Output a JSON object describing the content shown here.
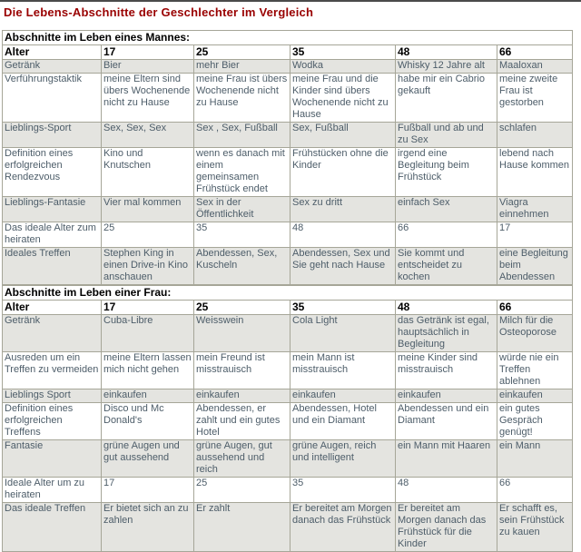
{
  "title": "Die Lebens-Abschnitte der Geschlechter im Vergleich",
  "colors": {
    "title_red": "#990000",
    "cell_text": "#4d5d69",
    "alt_row_bg": "#e4e4e0",
    "border": "#a6a698"
  },
  "sections": [
    {
      "section_title": "Abschnitte im Leben eines Mannes:",
      "age_label": "Alter",
      "ages": [
        "17",
        "25",
        "35",
        "48",
        "66"
      ],
      "rows": [
        {
          "label": "Getränk",
          "values": [
            "Bier",
            "mehr Bier",
            "Wodka",
            "Whisky 12 Jahre alt",
            "Maaloxan"
          ]
        },
        {
          "label": "Verführungstaktik",
          "values": [
            "meine Eltern sind übers Wochenende nicht zu Hause",
            "meine Frau ist übers Wochenende nicht zu Hause",
            "meine Frau und die Kinder sind übers Wochenende nicht zu Hause",
            "habe mir ein Cabrio gekauft",
            "meine zweite Frau ist gestorben"
          ]
        },
        {
          "label": "Lieblings-Sport",
          "values": [
            "Sex, Sex, Sex",
            "Sex , Sex, Fußball",
            "Sex, Fußball",
            "Fußball und ab und zu Sex",
            "schlafen"
          ]
        },
        {
          "label": "Definition eines erfolgreichen Rendezvous",
          "values": [
            "Kino und Knutschen",
            "wenn es danach mit einem gemeinsamen Frühstück endet",
            "Frühstücken ohne die Kinder",
            "irgend eine Begleitung beim Frühstück",
            "lebend nach Hause kommen"
          ]
        },
        {
          "label": "Lieblings-Fantasie",
          "values": [
            "Vier mal kommen",
            "Sex in der Öffentlichkeit",
            "Sex zu dritt",
            "einfach Sex",
            "Viagra einnehmen"
          ]
        },
        {
          "label": "Das ideale Alter zum heiraten",
          "values": [
            "25",
            "35",
            "48",
            "66",
            "17"
          ]
        },
        {
          "label": "Ideales Treffen",
          "values": [
            "Stephen King in einen Drive-in Kino anschauen",
            "Abendessen, Sex, Kuscheln",
            "Abendessen, Sex und Sie geht nach Hause",
            "Sie kommt und entscheidet zu kochen",
            "eine Begleitung beim Abendessen"
          ]
        }
      ]
    },
    {
      "section_title": "Abschnitte im Leben einer Frau:",
      "age_label": "Alter",
      "ages": [
        "17",
        "25",
        "35",
        "48",
        "66"
      ],
      "rows": [
        {
          "label": "Getränk",
          "values": [
            "Cuba-Libre",
            "Weisswein",
            "Cola Light",
            "das Getränk ist egal, hauptsächlich in Begleitung",
            "Milch für die Osteoporose"
          ]
        },
        {
          "label": "Ausreden um ein Treffen zu vermeiden",
          "values": [
            "meine Eltern lassen mich nicht gehen",
            "mein Freund ist misstrauisch",
            "mein Mann ist misstrauisch",
            "meine Kinder sind misstrauisch",
            "würde nie ein Treffen ablehnen"
          ]
        },
        {
          "label": "Lieblings Sport",
          "values": [
            "einkaufen",
            "einkaufen",
            "einkaufen",
            "einkaufen",
            "einkaufen"
          ]
        },
        {
          "label": "Definition eines erfolgreichen Treffens",
          "values": [
            "Disco und Mc Donald's",
            "Abendessen, er zahlt und ein gutes Hotel",
            "Abendessen, Hotel und ein Diamant",
            "Abendessen und ein Diamant",
            "ein gutes Gespräch genügt!"
          ]
        },
        {
          "label": "Fantasie",
          "values": [
            "grüne Augen und gut aussehend",
            "grüne Augen, gut aussehend und reich",
            "grüne Augen, reich und intelligent",
            "ein Mann mit Haaren",
            "ein Mann"
          ]
        },
        {
          "label": "Ideale Alter um zu heiraten",
          "values": [
            "17",
            "25",
            "35",
            "48",
            "66"
          ]
        },
        {
          "label": "Das ideale Treffen",
          "values": [
            "Er bietet sich an zu zahlen",
            "Er zahlt",
            "Er bereitet am Morgen danach das Frühstück",
            "Er bereitet am Morgen danach das Frühstück für die Kinder",
            "Er schafft es, sein Frühstück zu kauen"
          ]
        }
      ]
    }
  ]
}
